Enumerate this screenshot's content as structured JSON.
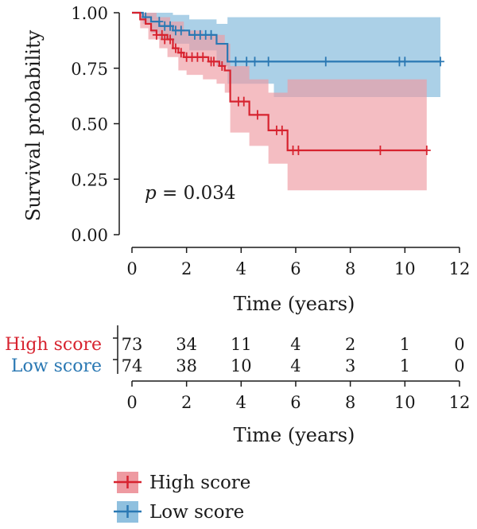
{
  "chart_data": {
    "type": "line",
    "subtype": "kaplan-meier",
    "ylabel": "Survival probability",
    "xlabel": "Time (years)",
    "xlim": [
      0,
      12
    ],
    "ylim": [
      0,
      1
    ],
    "xticks": [
      "0",
      "2",
      "4",
      "6",
      "8",
      "10",
      "12"
    ],
    "yticks": [
      "0.00",
      "0.25",
      "0.50",
      "0.75",
      "1.00"
    ],
    "grid": false,
    "annotation": {
      "p_symbol": "p",
      "p_text": " = 0.034"
    },
    "legend_position": "bottom",
    "series": [
      {
        "name": "High score",
        "color": "#d7232f",
        "band_color": "#ee9aa1",
        "steps": [
          [
            0,
            1.0
          ],
          [
            0.3,
            0.97
          ],
          [
            0.5,
            0.95
          ],
          [
            0.7,
            0.92
          ],
          [
            0.9,
            0.9
          ],
          [
            1.3,
            0.88
          ],
          [
            1.5,
            0.84
          ],
          [
            1.7,
            0.82
          ],
          [
            1.9,
            0.8
          ],
          [
            2.8,
            0.78
          ],
          [
            3.2,
            0.76
          ],
          [
            3.4,
            0.74
          ],
          [
            3.55,
            0.6
          ],
          [
            3.65,
            0.6
          ],
          [
            3.7,
            0.6
          ],
          [
            3.75,
            0.6
          ],
          [
            3.8,
            0.6
          ],
          [
            3.65,
            0.6
          ],
          [
            3.6,
            0.6
          ],
          [
            3.63,
            0.6
          ],
          [
            3.66,
            0.6
          ],
          [
            3.62,
            0.6
          ],
          [
            3.64,
            0.6
          ],
          [
            3.65,
            0.6
          ],
          [
            3.67,
            0.6
          ],
          [
            3.7,
            0.6
          ],
          [
            3.7,
            0.6
          ],
          [
            3.72,
            0.6
          ],
          [
            3.72,
            0.6
          ],
          [
            3.74,
            0.6
          ],
          [
            3.75,
            0.6
          ],
          [
            3.77,
            0.6
          ],
          [
            3.78,
            0.6
          ],
          [
            3.8,
            0.6
          ],
          [
            3.6,
            0.6
          ],
          [
            3.7,
            0.6
          ],
          [
            3.7,
            0.6
          ],
          [
            3.7,
            0.6
          ],
          [
            3.7,
            0.6
          ],
          [
            3.7,
            0.6
          ],
          [
            3.8,
            0.6
          ],
          [
            3.6,
            0.6
          ],
          [
            3.6,
            0.6
          ],
          [
            3.7,
            0.6
          ],
          [
            3.7,
            0.6
          ]
        ],
        "curve": [
          [
            0,
            1.0
          ],
          [
            0.3,
            0.97
          ],
          [
            0.5,
            0.95
          ],
          [
            0.7,
            0.92
          ],
          [
            0.9,
            0.9
          ],
          [
            1.3,
            0.88
          ],
          [
            1.5,
            0.84
          ],
          [
            1.7,
            0.82
          ],
          [
            1.9,
            0.8
          ],
          [
            2.8,
            0.78
          ],
          [
            3.2,
            0.76
          ],
          [
            3.4,
            0.74
          ],
          [
            3.6,
            0.6
          ],
          [
            4.3,
            0.54
          ],
          [
            5.0,
            0.47
          ],
          [
            5.7,
            0.38
          ],
          [
            10.8,
            0.38
          ]
        ],
        "lower": [
          [
            0,
            1.0
          ],
          [
            0.3,
            0.93
          ],
          [
            0.6,
            0.88
          ],
          [
            1.0,
            0.84
          ],
          [
            1.3,
            0.8
          ],
          [
            1.7,
            0.74
          ],
          [
            2.0,
            0.72
          ],
          [
            2.6,
            0.7
          ],
          [
            3.1,
            0.68
          ],
          [
            3.4,
            0.64
          ],
          [
            3.6,
            0.46
          ],
          [
            4.3,
            0.4
          ],
          [
            5.0,
            0.32
          ],
          [
            5.7,
            0.2
          ],
          [
            10.8,
            0.2
          ]
        ],
        "upper": [
          [
            0,
            1.0
          ],
          [
            0.5,
            1.0
          ],
          [
            0.9,
            0.98
          ],
          [
            1.4,
            0.96
          ],
          [
            1.9,
            0.92
          ],
          [
            2.6,
            0.9
          ],
          [
            3.4,
            0.86
          ],
          [
            3.6,
            0.76
          ],
          [
            4.3,
            0.7
          ],
          [
            5.0,
            0.64
          ],
          [
            5.7,
            0.7
          ],
          [
            10.8,
            0.7
          ]
        ],
        "censors": [
          [
            0.9,
            0.9
          ],
          [
            1.1,
            0.9
          ],
          [
            1.2,
            0.88
          ],
          [
            1.4,
            0.88
          ],
          [
            1.6,
            0.84
          ],
          [
            1.8,
            0.82
          ],
          [
            2.0,
            0.8
          ],
          [
            2.2,
            0.8
          ],
          [
            2.4,
            0.8
          ],
          [
            2.6,
            0.8
          ],
          [
            2.9,
            0.78
          ],
          [
            3.0,
            0.78
          ],
          [
            3.3,
            0.76
          ],
          [
            3.9,
            0.6
          ],
          [
            4.1,
            0.6
          ],
          [
            4.6,
            0.54
          ],
          [
            5.3,
            0.47
          ],
          [
            5.5,
            0.47
          ],
          [
            5.9,
            0.38
          ],
          [
            6.1,
            0.38
          ],
          [
            9.1,
            0.38
          ],
          [
            10.8,
            0.38
          ]
        ]
      },
      {
        "name": "Low score",
        "color": "#2a78b3",
        "band_color": "#8fc0df",
        "curve": [
          [
            0,
            1.0
          ],
          [
            0.4,
            0.98
          ],
          [
            0.7,
            0.96
          ],
          [
            1.0,
            0.94
          ],
          [
            1.5,
            0.92
          ],
          [
            2.1,
            0.9
          ],
          [
            3.1,
            0.86
          ],
          [
            3.5,
            0.78
          ],
          [
            11.3,
            0.78
          ]
        ],
        "lower": [
          [
            0,
            1.0
          ],
          [
            0.4,
            0.95
          ],
          [
            0.7,
            0.91
          ],
          [
            1.0,
            0.88
          ],
          [
            1.5,
            0.86
          ],
          [
            2.1,
            0.83
          ],
          [
            3.1,
            0.76
          ],
          [
            3.5,
            0.68
          ],
          [
            5.2,
            0.62
          ],
          [
            11.3,
            0.62
          ]
        ],
        "upper": [
          [
            0,
            1.0
          ],
          [
            1.0,
            1.0
          ],
          [
            1.5,
            0.99
          ],
          [
            2.1,
            0.97
          ],
          [
            3.1,
            0.95
          ],
          [
            3.5,
            0.98
          ],
          [
            11.3,
            0.98
          ]
        ],
        "censors": [
          [
            0.5,
            0.98
          ],
          [
            1.0,
            0.96
          ],
          [
            1.2,
            0.94
          ],
          [
            1.4,
            0.94
          ],
          [
            1.6,
            0.92
          ],
          [
            1.8,
            0.92
          ],
          [
            2.3,
            0.9
          ],
          [
            2.5,
            0.9
          ],
          [
            2.7,
            0.9
          ],
          [
            2.9,
            0.9
          ],
          [
            3.8,
            0.78
          ],
          [
            4.2,
            0.78
          ],
          [
            4.5,
            0.78
          ],
          [
            5.0,
            0.78
          ],
          [
            7.1,
            0.78
          ],
          [
            9.8,
            0.78
          ],
          [
            10.0,
            0.78
          ],
          [
            11.3,
            0.78
          ]
        ]
      }
    ],
    "risk_table": {
      "xlabel": "Time (years)",
      "times": [
        "0",
        "2",
        "4",
        "6",
        "8",
        "10",
        "12"
      ],
      "rows": [
        {
          "label": "High score",
          "color": "#d7232f",
          "counts": [
            "73",
            "34",
            "11",
            "4",
            "2",
            "1",
            "0"
          ]
        },
        {
          "label": "Low score",
          "color": "#2a78b3",
          "counts": [
            "74",
            "38",
            "10",
            "4",
            "3",
            "1",
            "0"
          ]
        }
      ]
    }
  }
}
